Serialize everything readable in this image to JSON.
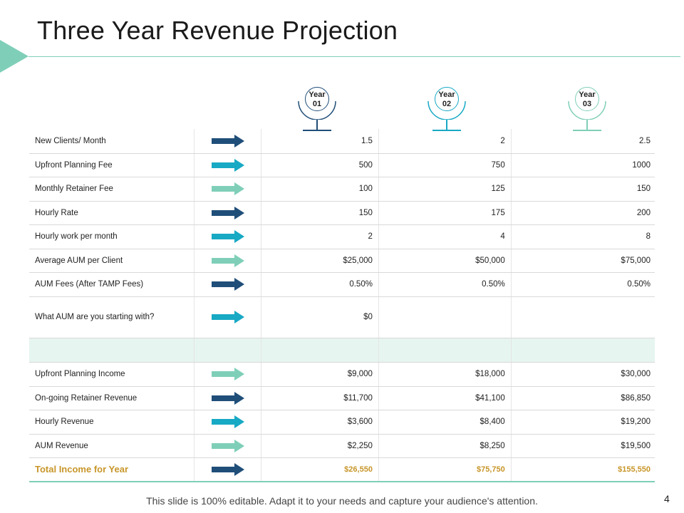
{
  "title": "Three Year Revenue Projection",
  "colors": {
    "accent": "#7fcfb8",
    "navy": "#1f4e79",
    "teal": "#18a9c4",
    "mint": "#7fcfb8",
    "gold": "#c8962a",
    "highlight_row": "#e6f5ef"
  },
  "years": [
    {
      "line1": "Year",
      "line2": "01",
      "color": "#1f4e79"
    },
    {
      "line1": "Year",
      "line2": "02",
      "color": "#18a9c4"
    },
    {
      "line1": "Year",
      "line2": "03",
      "color": "#7fcfb8"
    }
  ],
  "rows": [
    {
      "label": "New Clients/ Month",
      "arrow": "navy",
      "values": [
        "1.5",
        "2",
        "2.5"
      ]
    },
    {
      "label": "Upfront Planning Fee",
      "arrow": "teal",
      "values": [
        "500",
        "750",
        "1000"
      ]
    },
    {
      "label": "Monthly Retainer Fee",
      "arrow": "mint",
      "values": [
        "100",
        "125",
        "150"
      ]
    },
    {
      "label": "Hourly Rate",
      "arrow": "navy",
      "values": [
        "150",
        "175",
        "200"
      ]
    },
    {
      "label": "Hourly work per month",
      "arrow": "teal",
      "values": [
        "2",
        "4",
        "8"
      ]
    },
    {
      "label": "Average AUM per Client",
      "arrow": "mint",
      "values": [
        "$25,000",
        "$50,000",
        "$75,000"
      ]
    },
    {
      "label": "AUM Fees (After TAMP Fees)",
      "arrow": "navy",
      "values": [
        "0.50%",
        "0.50%",
        "0.50%"
      ]
    },
    {
      "label": "What AUM are you starting with?",
      "arrow": "teal",
      "values": [
        "$0",
        "",
        ""
      ]
    },
    {
      "label": "",
      "arrow": "",
      "values": [
        "",
        "",
        ""
      ],
      "spacer": true
    },
    {
      "label": "Upfront Planning Income",
      "arrow": "mint",
      "values": [
        "$9,000",
        "$18,000",
        "$30,000"
      ]
    },
    {
      "label": "On-going Retainer Revenue",
      "arrow": "navy",
      "values": [
        "$11,700",
        "$41,100",
        "$86,850"
      ]
    },
    {
      "label": "Hourly Revenue",
      "arrow": "teal",
      "values": [
        "$3,600",
        "$8,400",
        "$19,200"
      ]
    },
    {
      "label": "AUM Revenue",
      "arrow": "mint",
      "values": [
        "$2,250",
        "$8,250",
        "$19,500"
      ]
    },
    {
      "label": "Total Income for Year",
      "arrow": "navy",
      "values": [
        "$26,550",
        "$75,750",
        "$155,550"
      ],
      "total": true
    }
  ],
  "footer": "This slide is 100% editable. Adapt it to your needs and capture your audience's attention.",
  "page_number": "4"
}
